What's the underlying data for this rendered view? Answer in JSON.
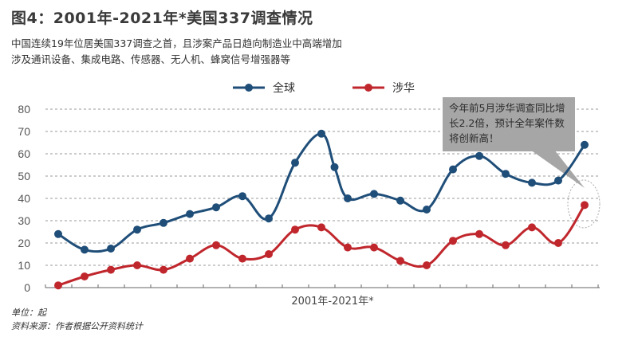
{
  "title": "图4：2001年-2021年*美国337调查情况",
  "subtitle_lines": [
    "中国连续19年位居美国337调查之首，且涉案产品日趋向制造业中高端增加",
    "涉及通讯设备、集成电路、传感器、无人机、蜂窝信号增强器等"
  ],
  "annotation": "今年前5月涉华调查同比增长2.2倍，预计全年案件数将创新高！",
  "footer": {
    "unit": "单位：起",
    "source": "资料来源：作者根据公开资料统计"
  },
  "chart_data": {
    "type": "line",
    "title": "图4：2001年-2021年*美国337调查情况",
    "xlabel": "2001年-2021年*",
    "ylabel": "",
    "ylim": [
      0,
      80
    ],
    "yticks": [
      0,
      10,
      20,
      30,
      40,
      50,
      60,
      70,
      80
    ],
    "grid": true,
    "legend": "top-center",
    "smooth": true,
    "series": [
      {
        "name": "全球",
        "color": "#1f4e79",
        "x": [
          2001,
          2002,
          2003,
          2004,
          2005,
          2006,
          2007,
          2008,
          2009,
          2010,
          2011,
          2011.5,
          2012,
          2013,
          2014,
          2015,
          2016,
          2017,
          2018,
          2019,
          2020,
          2021
        ],
        "values": [
          24,
          17,
          17.5,
          26,
          29,
          33,
          36,
          41,
          31,
          56,
          69,
          54,
          40,
          42,
          39,
          35,
          53,
          59,
          51,
          47,
          48,
          64
        ]
      },
      {
        "name": "涉华",
        "color": "#c0272d",
        "x": [
          2001,
          2002,
          2003,
          2004,
          2005,
          2006,
          2007,
          2008,
          2009,
          2010,
          2011,
          2012,
          2013,
          2014,
          2015,
          2016,
          2017,
          2018,
          2019,
          2020,
          2021
        ],
        "values": [
          1,
          5,
          8,
          10,
          8,
          13,
          19,
          13,
          15,
          26,
          27,
          18,
          18,
          12,
          10,
          21,
          24,
          19,
          27,
          20,
          37
        ]
      }
    ]
  }
}
